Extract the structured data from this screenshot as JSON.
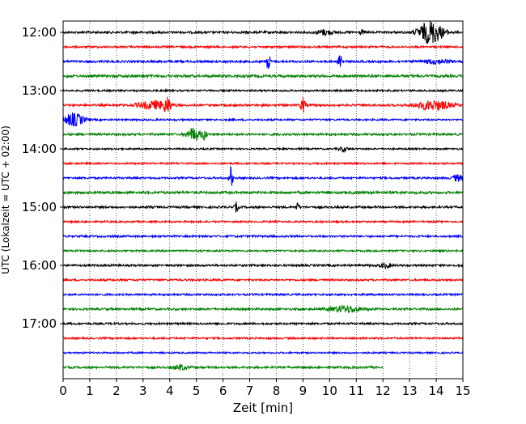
{
  "chart_data": {
    "type": "line",
    "title": "",
    "xlabel": "Zeit  [min]",
    "ylabel": "UTC (Lokalzeit = UTC + 02:00)",
    "xlim": [
      0,
      15
    ],
    "x_ticks": [
      0,
      1,
      2,
      3,
      4,
      5,
      6,
      7,
      8,
      9,
      10,
      11,
      12,
      13,
      14,
      15
    ],
    "grid": "vertical dotted",
    "row_minutes": 15,
    "first_row": "12:00",
    "y_tick_labels": [
      "12:00",
      "13:00",
      "14:00",
      "15:00",
      "16:00",
      "17:00"
    ],
    "colors_cycle": [
      "#000000",
      "#ff0000",
      "#0000ff",
      "#008000"
    ],
    "series": [
      {
        "start": "12:00",
        "color": "#000000",
        "noise": 1.4,
        "end_min": 15,
        "events": [
          {
            "t": 9.8,
            "amp": 3,
            "dur": 0.5
          },
          {
            "t": 11.2,
            "amp": 3.5,
            "dur": 0.1
          },
          {
            "t": 13.8,
            "amp": 14,
            "dur": 0.7
          }
        ]
      },
      {
        "start": "12:15",
        "color": "#ff0000",
        "noise": 1.2,
        "end_min": 15,
        "events": []
      },
      {
        "start": "12:30",
        "color": "#0000ff",
        "noise": 1.4,
        "end_min": 15,
        "events": [
          {
            "t": 7.7,
            "amp": 13,
            "dur": 0.1
          },
          {
            "t": 10.4,
            "amp": 12,
            "dur": 0.1
          },
          {
            "t": 14.0,
            "amp": 2.5,
            "dur": 0.8
          }
        ]
      },
      {
        "start": "12:45",
        "color": "#008000",
        "noise": 1.6,
        "end_min": 15,
        "events": []
      },
      {
        "start": "13:00",
        "color": "#000000",
        "noise": 1.1,
        "end_min": 15,
        "events": []
      },
      {
        "start": "13:15",
        "color": "#ff0000",
        "noise": 1.3,
        "end_min": 15,
        "events": [
          {
            "t": 3.4,
            "amp": 5,
            "dur": 0.9
          },
          {
            "t": 3.9,
            "amp": 9,
            "dur": 0.2
          },
          {
            "t": 9.0,
            "amp": 9,
            "dur": 0.15
          },
          {
            "t": 13.9,
            "amp": 6,
            "dur": 1.0
          }
        ]
      },
      {
        "start": "13:30",
        "color": "#0000ff",
        "noise": 1.1,
        "end_min": 15,
        "events": [
          {
            "t": 0.4,
            "amp": 8,
            "dur": 0.6
          }
        ]
      },
      {
        "start": "13:45",
        "color": "#008000",
        "noise": 1.3,
        "end_min": 15,
        "events": [
          {
            "t": 4.9,
            "amp": 8,
            "dur": 0.4
          },
          {
            "t": 5.3,
            "amp": 6,
            "dur": 0.15
          }
        ]
      },
      {
        "start": "14:00",
        "color": "#000000",
        "noise": 1.0,
        "end_min": 15,
        "events": [
          {
            "t": 10.5,
            "amp": 2.5,
            "dur": 0.3
          }
        ]
      },
      {
        "start": "14:15",
        "color": "#ff0000",
        "noise": 1.1,
        "end_min": 15,
        "events": []
      },
      {
        "start": "14:30",
        "color": "#0000ff",
        "noise": 1.2,
        "end_min": 15,
        "events": [
          {
            "t": 6.3,
            "amp": 14,
            "dur": 0.1
          },
          {
            "t": 14.8,
            "amp": 4,
            "dur": 0.3
          }
        ]
      },
      {
        "start": "14:45",
        "color": "#008000",
        "noise": 1.6,
        "end_min": 15,
        "events": []
      },
      {
        "start": "15:00",
        "color": "#000000",
        "noise": 1.3,
        "end_min": 15,
        "events": [
          {
            "t": 6.5,
            "amp": 6,
            "dur": 0.1
          },
          {
            "t": 8.8,
            "amp": 5,
            "dur": 0.1
          }
        ]
      },
      {
        "start": "15:15",
        "color": "#ff0000",
        "noise": 1.1,
        "end_min": 15,
        "events": []
      },
      {
        "start": "15:30",
        "color": "#0000ff",
        "noise": 1.2,
        "end_min": 15,
        "events": []
      },
      {
        "start": "15:45",
        "color": "#008000",
        "noise": 1.1,
        "end_min": 15,
        "events": []
      },
      {
        "start": "16:00",
        "color": "#000000",
        "noise": 1.3,
        "end_min": 15,
        "events": [
          {
            "t": 12.1,
            "amp": 3,
            "dur": 0.3
          }
        ]
      },
      {
        "start": "16:15",
        "color": "#ff0000",
        "noise": 1.2,
        "end_min": 15,
        "events": []
      },
      {
        "start": "16:30",
        "color": "#0000ff",
        "noise": 1.2,
        "end_min": 15,
        "events": []
      },
      {
        "start": "16:45",
        "color": "#008000",
        "noise": 1.3,
        "end_min": 15,
        "events": [
          {
            "t": 10.6,
            "amp": 4,
            "dur": 0.9
          }
        ]
      },
      {
        "start": "17:00",
        "color": "#000000",
        "noise": 1.2,
        "end_min": 15,
        "events": []
      },
      {
        "start": "17:15",
        "color": "#ff0000",
        "noise": 1.1,
        "end_min": 15,
        "events": []
      },
      {
        "start": "17:30",
        "color": "#0000ff",
        "noise": 1.0,
        "end_min": 15,
        "events": []
      },
      {
        "start": "17:45",
        "color": "#008000",
        "noise": 1.3,
        "end_min": 12,
        "events": [
          {
            "t": 4.4,
            "amp": 3,
            "dur": 0.4
          }
        ]
      }
    ]
  }
}
